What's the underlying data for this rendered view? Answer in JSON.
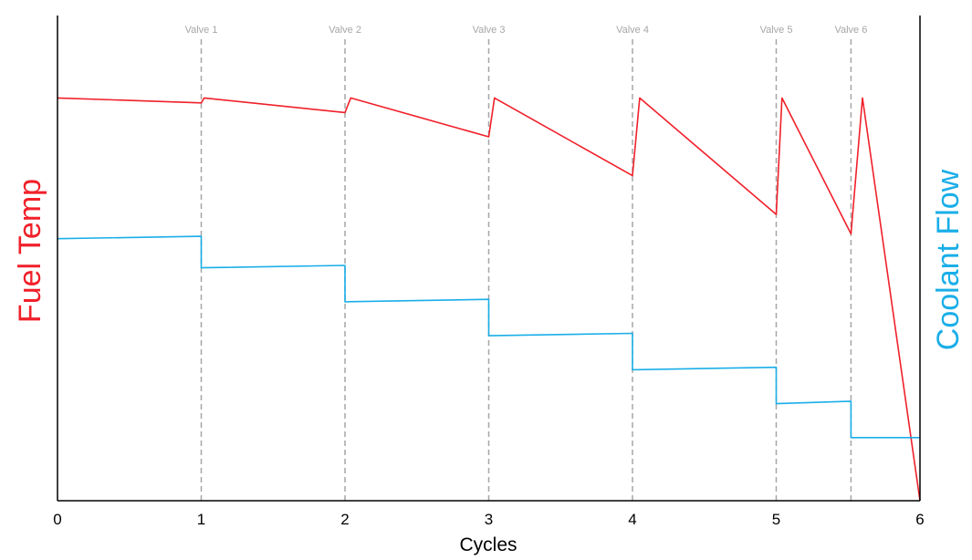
{
  "chart_data": {
    "type": "line",
    "title": "",
    "xlabel": "Cycles",
    "ylabel_left": "Fuel Temp",
    "ylabel_right": "Coolant Flow",
    "xlim": [
      0,
      6
    ],
    "ylim": [
      0,
      100
    ],
    "x_ticks": [
      "0",
      "1",
      "2",
      "3",
      "4",
      "5",
      "6"
    ],
    "x_tick_values": [
      0,
      1,
      2,
      3,
      4,
      5,
      6
    ],
    "grid": false,
    "legend": "none",
    "valve_markers": [
      {
        "label": "Valve 1",
        "x": 1.0
      },
      {
        "label": "Valve 2",
        "x": 2.0
      },
      {
        "label": "Valve 3",
        "x": 3.0
      },
      {
        "label": "Valve 4",
        "x": 4.0
      },
      {
        "label": "Valve 5",
        "x": 5.0
      },
      {
        "label": "Valve 6",
        "x": 5.52
      }
    ],
    "series": [
      {
        "axis": "left",
        "color": "#f0202a",
        "x": [
          0,
          1.0,
          1.02,
          2.0,
          2.04,
          3.0,
          3.04,
          4.0,
          4.05,
          5.0,
          5.04,
          5.52,
          5.6,
          6.0
        ],
        "y": [
          83,
          82,
          83,
          80,
          83,
          75,
          83,
          67,
          83,
          59,
          83,
          55,
          83,
          0
        ]
      },
      {
        "axis": "right",
        "color": "#1aaee8",
        "x": [
          0,
          1.0,
          1.0,
          2.0,
          2.0,
          3.0,
          3.0,
          4.0,
          4.0,
          5.0,
          5.0,
          5.52,
          5.52,
          6.0
        ],
        "y": [
          54,
          54.5,
          48,
          48.5,
          41,
          41.5,
          34,
          34.5,
          27,
          27.5,
          20,
          20.5,
          13,
          13
        ]
      }
    ],
    "colors": {
      "fuel_temp": "#f0202a",
      "coolant_flow": "#1aaee8",
      "axes": "#000000",
      "valve_line": "#a6a6a6",
      "valve_text": "#a6a6a6"
    }
  }
}
